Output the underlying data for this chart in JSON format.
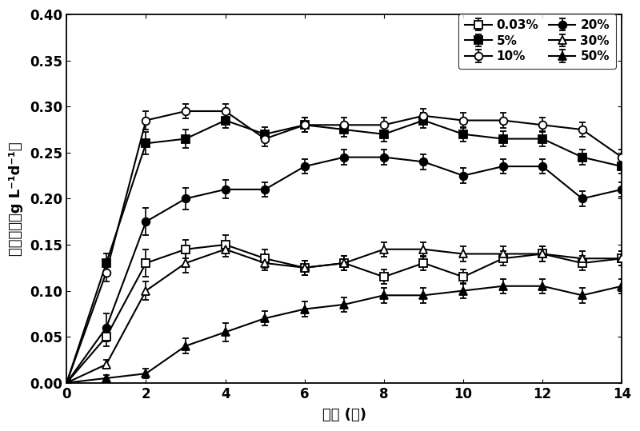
{
  "x": [
    0,
    1,
    2,
    3,
    4,
    5,
    6,
    7,
    8,
    9,
    10,
    11,
    12,
    13,
    14
  ],
  "series_order": [
    "0.03%",
    "5%",
    "10%",
    "20%",
    "30%",
    "50%"
  ],
  "series": {
    "0.03%": {
      "y": [
        0.0,
        0.05,
        0.13,
        0.145,
        0.15,
        0.135,
        0.125,
        0.13,
        0.115,
        0.13,
        0.115,
        0.135,
        0.14,
        0.13,
        0.135
      ],
      "yerr": [
        0.0,
        0.01,
        0.015,
        0.01,
        0.01,
        0.01,
        0.008,
        0.008,
        0.008,
        0.008,
        0.008,
        0.008,
        0.008,
        0.008,
        0.008
      ],
      "marker": "s",
      "filled": false,
      "label": "0.03%"
    },
    "5%": {
      "y": [
        0.0,
        0.13,
        0.26,
        0.265,
        0.285,
        0.27,
        0.28,
        0.275,
        0.27,
        0.285,
        0.27,
        0.265,
        0.265,
        0.245,
        0.235
      ],
      "yerr": [
        0.0,
        0.01,
        0.012,
        0.01,
        0.008,
        0.008,
        0.008,
        0.008,
        0.008,
        0.008,
        0.008,
        0.008,
        0.008,
        0.008,
        0.008
      ],
      "marker": "s",
      "filled": true,
      "label": "5%"
    },
    "10%": {
      "y": [
        0.0,
        0.12,
        0.285,
        0.295,
        0.295,
        0.265,
        0.28,
        0.28,
        0.28,
        0.29,
        0.285,
        0.285,
        0.28,
        0.275,
        0.245
      ],
      "yerr": [
        0.0,
        0.01,
        0.01,
        0.008,
        0.008,
        0.008,
        0.008,
        0.008,
        0.008,
        0.008,
        0.008,
        0.008,
        0.008,
        0.008,
        0.008
      ],
      "marker": "o",
      "filled": false,
      "label": "10%"
    },
    "20%": {
      "y": [
        0.0,
        0.06,
        0.175,
        0.2,
        0.21,
        0.21,
        0.235,
        0.245,
        0.245,
        0.24,
        0.225,
        0.235,
        0.235,
        0.2,
        0.21
      ],
      "yerr": [
        0.0,
        0.015,
        0.015,
        0.012,
        0.01,
        0.008,
        0.008,
        0.008,
        0.008,
        0.008,
        0.008,
        0.008,
        0.008,
        0.008,
        0.008
      ],
      "marker": "o",
      "filled": true,
      "label": "20%"
    },
    "30%": {
      "y": [
        0.0,
        0.02,
        0.1,
        0.13,
        0.145,
        0.13,
        0.125,
        0.13,
        0.145,
        0.145,
        0.14,
        0.14,
        0.14,
        0.135,
        0.135
      ],
      "yerr": [
        0.0,
        0.005,
        0.01,
        0.01,
        0.008,
        0.008,
        0.008,
        0.008,
        0.008,
        0.008,
        0.008,
        0.008,
        0.008,
        0.008,
        0.008
      ],
      "marker": "^",
      "filled": false,
      "label": "30%"
    },
    "50%": {
      "y": [
        0.0,
        0.005,
        0.01,
        0.04,
        0.055,
        0.07,
        0.08,
        0.085,
        0.095,
        0.095,
        0.1,
        0.105,
        0.105,
        0.095,
        0.105
      ],
      "yerr": [
        0.0,
        0.003,
        0.005,
        0.008,
        0.01,
        0.008,
        0.008,
        0.008,
        0.008,
        0.008,
        0.008,
        0.008,
        0.008,
        0.008,
        0.008
      ],
      "marker": "^",
      "filled": true,
      "label": "50%"
    }
  },
  "legend_order": [
    "0.03%",
    "5%",
    "10%",
    "20%",
    "30%",
    "50%"
  ],
  "xlabel": "时间 (天)",
  "ylabel": "固碗速率（g L⁻¹d⁻¹）",
  "ylabel_line1": "固碗速率",
  "ylabel_line2": "(g L⁻¹d⁻¹)",
  "xlim": [
    0,
    14
  ],
  "ylim": [
    0.0,
    0.4
  ],
  "yticks": [
    0.0,
    0.05,
    0.1,
    0.15,
    0.2,
    0.25,
    0.3,
    0.35,
    0.4
  ],
  "xticks": [
    0,
    2,
    4,
    6,
    8,
    10,
    12,
    14
  ],
  "background_color": "#ffffff",
  "font_size_ticks": 12,
  "font_size_label": 13,
  "font_size_legend": 11,
  "markersize": 7,
  "linewidth": 1.5
}
